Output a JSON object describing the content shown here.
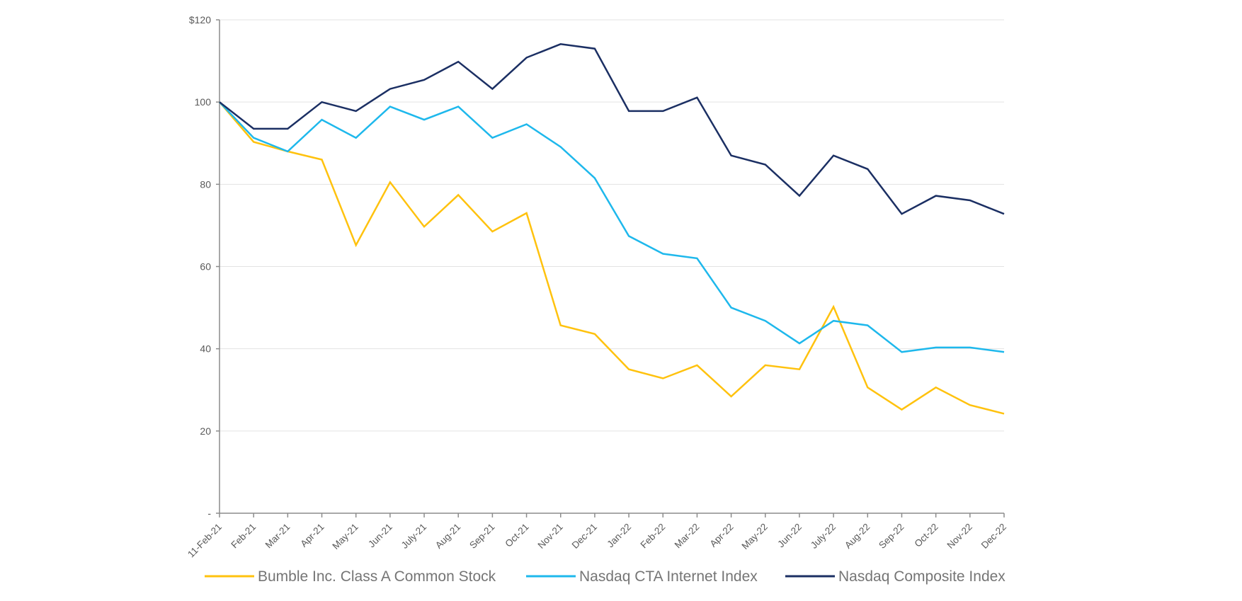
{
  "chart_data": {
    "type": "line",
    "title": "",
    "xlabel": "",
    "ylabel": "",
    "ylim": [
      0,
      120
    ],
    "y_ticks": [
      {
        "value": 0,
        "label": "-"
      },
      {
        "value": 20,
        "label": "20"
      },
      {
        "value": 40,
        "label": "40"
      },
      {
        "value": 60,
        "label": "60"
      },
      {
        "value": 80,
        "label": "80"
      },
      {
        "value": 100,
        "label": "100"
      },
      {
        "value": 120,
        "label": "$120"
      }
    ],
    "grid": true,
    "legend_position": "bottom",
    "categories": [
      "11-Feb-21",
      "Feb-21",
      "Mar-21",
      "Apr-21",
      "May-21",
      "Jun-21",
      "July-21",
      "Aug-21",
      "Sep-21",
      "Oct-21",
      "Nov-21",
      "Dec-21",
      "Jan-22",
      "Feb-22",
      "Mar-22",
      "Apr-22",
      "May-22",
      "Jun-22",
      "July-22",
      "Aug-22",
      "Sep-22",
      "Oct-22",
      "Nov-22",
      "Dec-22"
    ],
    "series": [
      {
        "name": "Bumble Inc. Class A Common Stock",
        "color": "#FFC20E",
        "values": [
          100,
          90.3,
          88,
          86,
          65.2,
          80.5,
          69.7,
          77.4,
          68.5,
          73,
          45.7,
          43.6,
          35,
          32.8,
          36,
          28.4,
          36,
          35,
          50.2,
          30.6,
          25.2,
          30.6,
          26.3,
          24.2
        ]
      },
      {
        "name": "Nasdaq CTA Internet Index",
        "color": "#1EB8EC",
        "values": [
          100,
          91.3,
          88,
          95.7,
          91.3,
          98.9,
          95.7,
          98.9,
          91.3,
          94.6,
          89.1,
          81.5,
          67.4,
          63.1,
          62,
          50,
          46.8,
          41.3,
          46.8,
          45.7,
          39.2,
          40.3,
          40.3,
          39.2
        ]
      },
      {
        "name": "Nasdaq Composite Index",
        "color": "#1B2F63",
        "values": [
          100,
          93.5,
          93.5,
          100,
          97.8,
          103.2,
          105.4,
          109.8,
          103.2,
          110.8,
          114.1,
          113,
          97.8,
          97.8,
          101.1,
          87,
          84.8,
          77.2,
          87,
          83.7,
          72.8,
          77.2,
          76.1,
          72.8
        ]
      }
    ]
  }
}
